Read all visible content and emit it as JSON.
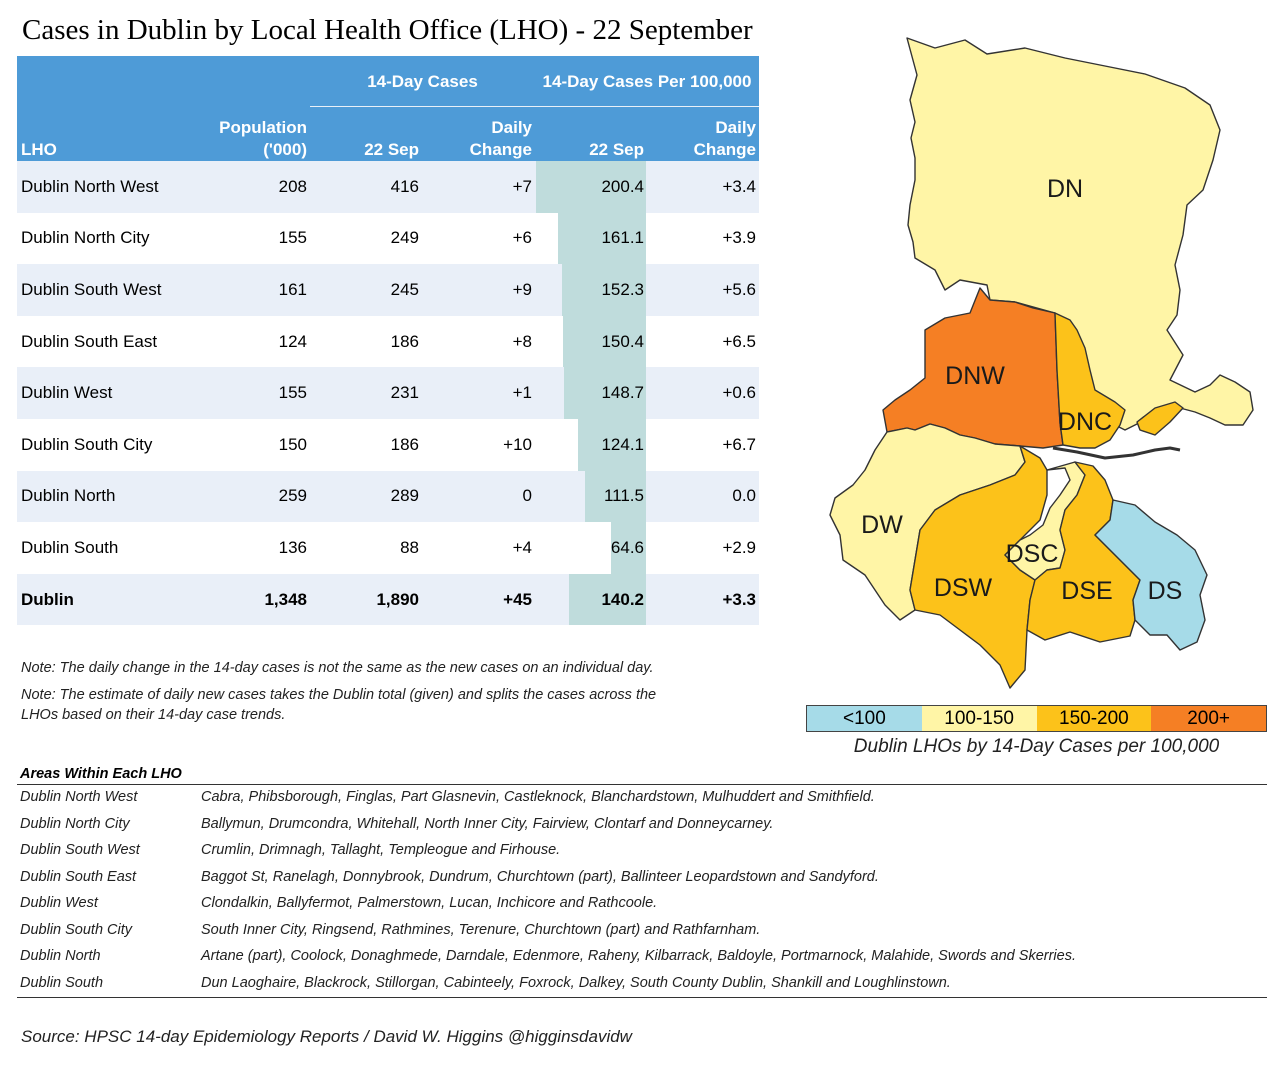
{
  "title": "Cases in Dublin by Local Health Office (LHO) - 22 September",
  "table": {
    "group_headers": {
      "cases": "14-Day Cases",
      "per100k": "14-Day Cases Per 100,000"
    },
    "col_headers": {
      "lho": "LHO",
      "population_1": "Population",
      "population_2": "('000)",
      "cases_date": "22 Sep",
      "cases_change_1": "Daily",
      "cases_change_2": "Change",
      "rate_date": "22 Sep",
      "rate_change_1": "Daily",
      "rate_change_2": "Change"
    },
    "rows": [
      {
        "lho": "Dublin North West",
        "population": "208",
        "cases": "416",
        "cases_change": "+7",
        "rate": "200.4",
        "rate_change": "+3.4"
      },
      {
        "lho": "Dublin North City",
        "population": "155",
        "cases": "249",
        "cases_change": "+6",
        "rate": "161.1",
        "rate_change": "+3.9"
      },
      {
        "lho": "Dublin South West",
        "population": "161",
        "cases": "245",
        "cases_change": "+9",
        "rate": "152.3",
        "rate_change": "+5.6"
      },
      {
        "lho": "Dublin South East",
        "population": "124",
        "cases": "186",
        "cases_change": "+8",
        "rate": "150.4",
        "rate_change": "+6.5"
      },
      {
        "lho": "Dublin West",
        "population": "155",
        "cases": "231",
        "cases_change": "+1",
        "rate": "148.7",
        "rate_change": "+0.6"
      },
      {
        "lho": "Dublin South City",
        "population": "150",
        "cases": "186",
        "cases_change": "+10",
        "rate": "124.1",
        "rate_change": "+6.7"
      },
      {
        "lho": "Dublin North",
        "population": "259",
        "cases": "289",
        "cases_change": "0",
        "rate": "111.5",
        "rate_change": "0.0"
      },
      {
        "lho": "Dublin South",
        "population": "136",
        "cases": "88",
        "cases_change": "+4",
        "rate": "64.6",
        "rate_change": "+2.9"
      }
    ],
    "total": {
      "lho": "Dublin",
      "population": "1,348",
      "cases": "1,890",
      "cases_change": "+45",
      "rate": "140.2",
      "rate_change": "+3.3"
    },
    "colors": {
      "header_bg": "#4e9bd7",
      "alt_row": "#e9eff8",
      "bar": "#bfdcdc"
    }
  },
  "chart_data": {
    "type": "table",
    "title": "Cases in Dublin by Local Health Office (LHO) - 22 September",
    "columns": [
      "LHO",
      "Population ('000)",
      "14-Day Cases 22 Sep",
      "14-Day Cases Daily Change",
      "14-Day Cases Per 100,000 22 Sep",
      "14-Day Cases Per 100,000 Daily Change"
    ],
    "categories": [
      "Dublin North West",
      "Dublin North City",
      "Dublin South West",
      "Dublin South East",
      "Dublin West",
      "Dublin South City",
      "Dublin North",
      "Dublin South",
      "Dublin"
    ],
    "series": [
      {
        "name": "Population ('000)",
        "values": [
          208,
          155,
          161,
          124,
          155,
          150,
          259,
          136,
          1348
        ]
      },
      {
        "name": "14-Day Cases",
        "values": [
          416,
          249,
          245,
          186,
          231,
          186,
          289,
          88,
          1890
        ]
      },
      {
        "name": "Daily Change",
        "values": [
          7,
          6,
          9,
          8,
          1,
          10,
          0,
          4,
          45
        ]
      },
      {
        "name": "14-Day Cases Per 100,000",
        "values": [
          200.4,
          161.1,
          152.3,
          150.4,
          148.7,
          124.1,
          111.5,
          64.6,
          140.2
        ]
      },
      {
        "name": "Daily Change",
        "values": [
          3.4,
          3.9,
          5.6,
          6.5,
          0.6,
          6.7,
          0.0,
          2.9,
          3.3
        ]
      }
    ],
    "bar_scale_max": 200.4
  },
  "notes": [
    "Note: The daily change in the 14-day cases is not the same as the new cases on an individual day.",
    "Note: The estimate of daily new cases takes the Dublin total (given) and splits the cases across the",
    "LHOs based on their 14-day case trends."
  ],
  "map": {
    "regions": [
      {
        "code": "DN",
        "band": "100-150"
      },
      {
        "code": "DNW",
        "band": "200+"
      },
      {
        "code": "DNC",
        "band": "150-200"
      },
      {
        "code": "DW",
        "band": "100-150"
      },
      {
        "code": "DSC",
        "band": "100-150"
      },
      {
        "code": "DSW",
        "band": "150-200"
      },
      {
        "code": "DSE",
        "band": "150-200"
      },
      {
        "code": "DS",
        "band": "<100"
      }
    ],
    "band_colors": {
      "<100": "#a6dbe8",
      "100-150": "#fff5a6",
      "150-200": "#fcc21a",
      "200+": "#f57f24"
    },
    "legend": [
      "<100",
      "100-150",
      "150-200",
      "200+"
    ],
    "caption": "Dublin LHOs by 14-Day Cases per 100,000"
  },
  "areas": {
    "heading": "Areas Within Each LHO",
    "rows": [
      {
        "lho": "Dublin North West",
        "areas": "Cabra, Phibsborough, Finglas, Part Glasnevin, Castleknock, Blanchardstown, Mulhuddert and Smithfield."
      },
      {
        "lho": "Dublin North City",
        "areas": "Ballymun, Drumcondra, Whitehall, North Inner City, Fairview, Clontarf and Donneycarney."
      },
      {
        "lho": "Dublin South West",
        "areas": "Crumlin, Drimnagh, Tallaght, Templeogue and Firhouse."
      },
      {
        "lho": "Dublin South East",
        "areas": "Baggot St, Ranelagh, Donnybrook, Dundrum, Churchtown (part), Ballinteer Leopardstown and Sandyford."
      },
      {
        "lho": "Dublin West",
        "areas": "Clondalkin, Ballyfermot, Palmerstown, Lucan, Inchicore and Rathcoole."
      },
      {
        "lho": "Dublin South City",
        "areas": "South Inner City, Ringsend, Rathmines, Terenure, Churchtown (part) and Rathfarnham."
      },
      {
        "lho": "Dublin North",
        "areas": "Artane (part), Coolock, Donaghmede, Darndale, Edenmore, Raheny, Kilbarrack, Baldoyle, Portmarnock, Malahide, Swords and Skerries."
      },
      {
        "lho": "Dublin South",
        "areas": "Dun Laoghaire, Blackrock, Stillorgan, Cabinteely, Foxrock, Dalkey, South County Dublin, Shankill and Loughlinstown."
      }
    ]
  },
  "source": "Source: HPSC 14-day Epidemiology Reports / David W. Higgins @higginsdavidw"
}
